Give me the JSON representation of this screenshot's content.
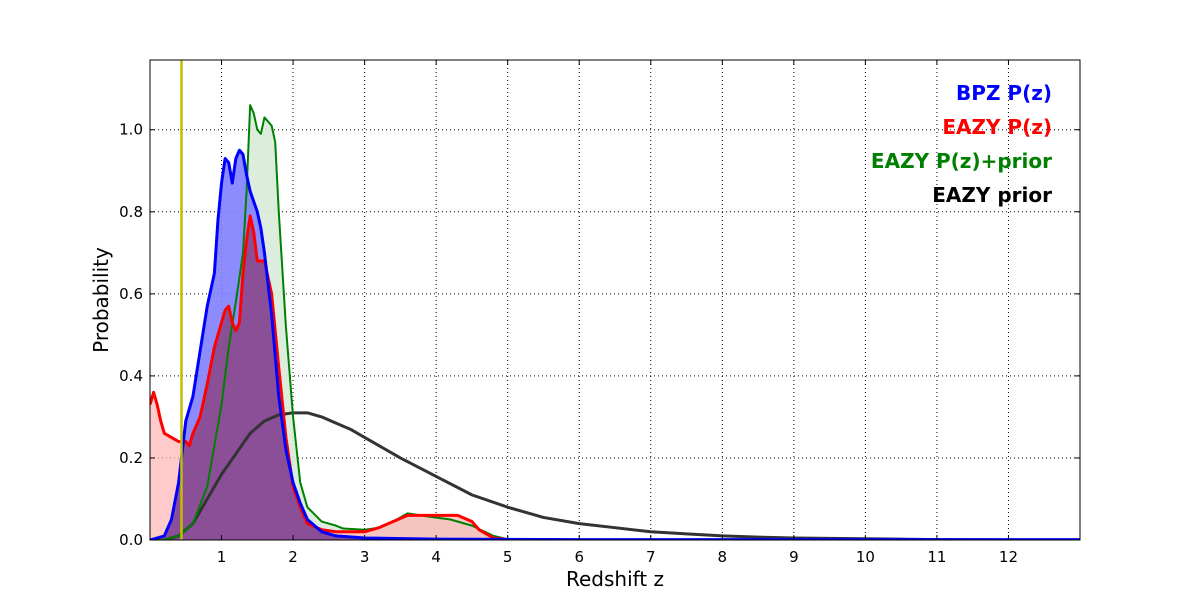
{
  "chart_data": {
    "type": "line",
    "title": "",
    "xlabel": "Redshift z",
    "ylabel": "Probability",
    "xlim": [
      0,
      13
    ],
    "ylim": [
      0,
      1.17
    ],
    "grid": true,
    "legend_placement": "top-right",
    "x_ticks": [
      1,
      2,
      3,
      4,
      5,
      6,
      7,
      8,
      9,
      10,
      11,
      12
    ],
    "y_ticks": [
      0.0,
      0.2,
      0.4,
      0.6,
      0.8,
      1.0
    ],
    "x_tick_labels": [
      "1",
      "2",
      "3",
      "4",
      "5",
      "6",
      "7",
      "8",
      "9",
      "10",
      "11",
      "12"
    ],
    "y_tick_labels": [
      "0.0",
      "0.2",
      "0.4",
      "0.6",
      "0.8",
      "1.0"
    ],
    "vline": {
      "x": 0.44,
      "color": "#bfbf00"
    },
    "series": [
      {
        "name": "BPZ P(z)",
        "color": "#0000ff",
        "fill": "#7f7fff",
        "points": [
          [
            0,
            0
          ],
          [
            0.2,
            0.01
          ],
          [
            0.3,
            0.05
          ],
          [
            0.4,
            0.14
          ],
          [
            0.5,
            0.29
          ],
          [
            0.6,
            0.35
          ],
          [
            0.7,
            0.46
          ],
          [
            0.8,
            0.57
          ],
          [
            0.9,
            0.65
          ],
          [
            0.95,
            0.78
          ],
          [
            1.0,
            0.87
          ],
          [
            1.05,
            0.93
          ],
          [
            1.1,
            0.92
          ],
          [
            1.15,
            0.87
          ],
          [
            1.2,
            0.93
          ],
          [
            1.25,
            0.95
          ],
          [
            1.3,
            0.94
          ],
          [
            1.35,
            0.89
          ],
          [
            1.4,
            0.85
          ],
          [
            1.5,
            0.8
          ],
          [
            1.55,
            0.76
          ],
          [
            1.6,
            0.7
          ],
          [
            1.7,
            0.55
          ],
          [
            1.8,
            0.35
          ],
          [
            1.9,
            0.22
          ],
          [
            2.0,
            0.14
          ],
          [
            2.1,
            0.09
          ],
          [
            2.2,
            0.05
          ],
          [
            2.4,
            0.02
          ],
          [
            2.6,
            0.01
          ],
          [
            3.0,
            0.005
          ],
          [
            4.0,
            0.002
          ],
          [
            6,
            0.001
          ],
          [
            12,
            0.001
          ],
          [
            13,
            0.001
          ]
        ]
      },
      {
        "name": "EAZY P(z)",
        "color": "#ff0000",
        "fill": "#ffb3b3",
        "points": [
          [
            0,
            0.33
          ],
          [
            0.05,
            0.36
          ],
          [
            0.1,
            0.33
          ],
          [
            0.15,
            0.29
          ],
          [
            0.2,
            0.26
          ],
          [
            0.3,
            0.25
          ],
          [
            0.4,
            0.24
          ],
          [
            0.5,
            0.24
          ],
          [
            0.55,
            0.23
          ],
          [
            0.6,
            0.26
          ],
          [
            0.7,
            0.3
          ],
          [
            0.8,
            0.38
          ],
          [
            0.9,
            0.47
          ],
          [
            1.0,
            0.53
          ],
          [
            1.05,
            0.56
          ],
          [
            1.1,
            0.57
          ],
          [
            1.15,
            0.53
          ],
          [
            1.2,
            0.51
          ],
          [
            1.25,
            0.53
          ],
          [
            1.3,
            0.65
          ],
          [
            1.35,
            0.73
          ],
          [
            1.4,
            0.79
          ],
          [
            1.45,
            0.75
          ],
          [
            1.5,
            0.68
          ],
          [
            1.6,
            0.68
          ],
          [
            1.7,
            0.6
          ],
          [
            1.8,
            0.42
          ],
          [
            1.9,
            0.25
          ],
          [
            2.0,
            0.13
          ],
          [
            2.1,
            0.08
          ],
          [
            2.2,
            0.04
          ],
          [
            2.4,
            0.025
          ],
          [
            2.6,
            0.02
          ],
          [
            3.0,
            0.02
          ],
          [
            3.2,
            0.03
          ],
          [
            3.4,
            0.045
          ],
          [
            3.6,
            0.06
          ],
          [
            4.0,
            0.06
          ],
          [
            4.3,
            0.06
          ],
          [
            4.5,
            0.045
          ],
          [
            4.6,
            0.025
          ],
          [
            4.8,
            0.005
          ],
          [
            5.0,
            0.001
          ],
          [
            6,
            0.0
          ],
          [
            13,
            0.0
          ]
        ]
      },
      {
        "name": "EAZY P(z)+prior",
        "color": "#008000",
        "fill": "#d9ebd9",
        "points": [
          [
            0,
            0
          ],
          [
            0.2,
            0.0
          ],
          [
            0.4,
            0.01
          ],
          [
            0.6,
            0.04
          ],
          [
            0.8,
            0.13
          ],
          [
            1.0,
            0.33
          ],
          [
            1.1,
            0.47
          ],
          [
            1.2,
            0.58
          ],
          [
            1.3,
            0.7
          ],
          [
            1.35,
            0.85
          ],
          [
            1.4,
            1.06
          ],
          [
            1.45,
            1.04
          ],
          [
            1.5,
            1.0
          ],
          [
            1.55,
            0.99
          ],
          [
            1.6,
            1.03
          ],
          [
            1.7,
            1.01
          ],
          [
            1.75,
            0.97
          ],
          [
            1.8,
            0.8
          ],
          [
            1.9,
            0.52
          ],
          [
            2.0,
            0.3
          ],
          [
            2.1,
            0.14
          ],
          [
            2.2,
            0.08
          ],
          [
            2.4,
            0.045
          ],
          [
            2.6,
            0.035
          ],
          [
            2.7,
            0.028
          ],
          [
            3.0,
            0.025
          ],
          [
            3.2,
            0.03
          ],
          [
            3.4,
            0.045
          ],
          [
            3.6,
            0.065
          ],
          [
            3.9,
            0.057
          ],
          [
            4.2,
            0.05
          ],
          [
            4.5,
            0.035
          ],
          [
            4.8,
            0.01
          ],
          [
            5.0,
            0.002
          ],
          [
            6,
            0.0
          ],
          [
            13,
            0.0
          ]
        ]
      },
      {
        "name": "EAZY prior",
        "color": "#333333",
        "fill": "none",
        "points": [
          [
            0.2,
            0.0
          ],
          [
            0.4,
            0.01
          ],
          [
            0.6,
            0.04
          ],
          [
            0.8,
            0.1
          ],
          [
            1.0,
            0.16
          ],
          [
            1.2,
            0.21
          ],
          [
            1.4,
            0.26
          ],
          [
            1.6,
            0.29
          ],
          [
            1.8,
            0.305
          ],
          [
            2.0,
            0.31
          ],
          [
            2.2,
            0.31
          ],
          [
            2.4,
            0.3
          ],
          [
            2.6,
            0.285
          ],
          [
            2.8,
            0.27
          ],
          [
            3.0,
            0.25
          ],
          [
            3.5,
            0.2
          ],
          [
            4.0,
            0.155
          ],
          [
            4.5,
            0.11
          ],
          [
            5.0,
            0.08
          ],
          [
            5.5,
            0.055
          ],
          [
            6.0,
            0.04
          ],
          [
            6.5,
            0.03
          ],
          [
            7.0,
            0.02
          ],
          [
            7.5,
            0.015
          ],
          [
            8.0,
            0.01
          ],
          [
            8.5,
            0.007
          ],
          [
            9.0,
            0.005
          ],
          [
            10.0,
            0.003
          ],
          [
            11.0,
            0.001
          ],
          [
            12.0,
            0.0
          ]
        ]
      }
    ]
  }
}
